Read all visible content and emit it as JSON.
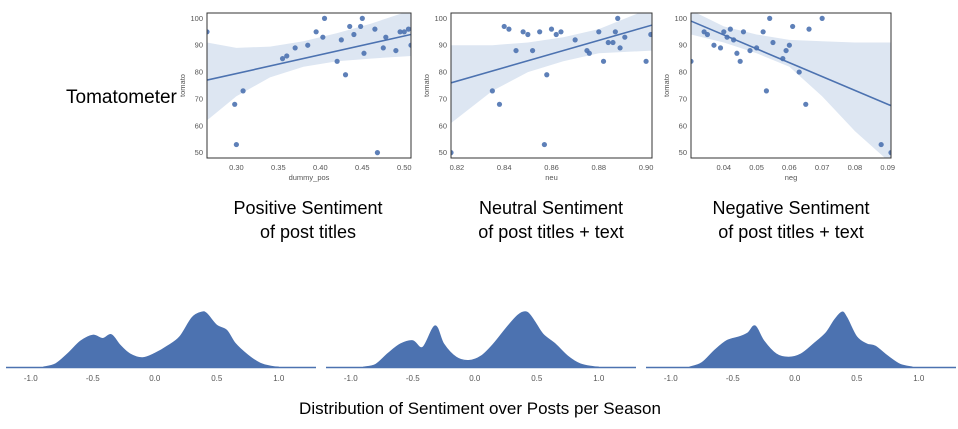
{
  "figure": {
    "left_label": "Tomatometer",
    "bottom_title": "Distribution of Sentiment over Posts per Season",
    "captions": [
      [
        "Positive Sentiment",
        "of post titles"
      ],
      [
        "Neutral Sentiment",
        "of post titles + text"
      ],
      [
        "Negative Sentiment",
        "of post titles + text"
      ]
    ]
  },
  "colors": {
    "point": "#4c72b0",
    "line": "#4c72b0",
    "band": "#dde6f2",
    "density_fill": "#4c72b0",
    "axis_text": "#555555",
    "frame": "#333333"
  },
  "chart_data": [
    {
      "type": "scatter",
      "xlabel": "dummy_pos",
      "ylabel": "tomato",
      "xlim": [
        0.265,
        0.508
      ],
      "ylim": [
        48,
        102
      ],
      "xticks": [
        0.3,
        0.35,
        0.4,
        0.45,
        0.5
      ],
      "xtick_labels": [
        "0.30",
        "0.35",
        "0.40",
        "0.45",
        "0.50"
      ],
      "yticks": [
        50,
        60,
        70,
        80,
        90,
        100
      ],
      "yticks_labels": [
        "50",
        "60",
        "70",
        "80",
        "90",
        "100"
      ],
      "grid": false,
      "points": [
        [
          0.265,
          95
        ],
        [
          0.298,
          68
        ],
        [
          0.3,
          53
        ],
        [
          0.308,
          73
        ],
        [
          0.355,
          85
        ],
        [
          0.36,
          86
        ],
        [
          0.37,
          89
        ],
        [
          0.385,
          90
        ],
        [
          0.395,
          95
        ],
        [
          0.403,
          93
        ],
        [
          0.405,
          100
        ],
        [
          0.42,
          84
        ],
        [
          0.425,
          92
        ],
        [
          0.43,
          79
        ],
        [
          0.435,
          97
        ],
        [
          0.44,
          94
        ],
        [
          0.448,
          97
        ],
        [
          0.45,
          100
        ],
        [
          0.452,
          87
        ],
        [
          0.465,
          96
        ],
        [
          0.468,
          50
        ],
        [
          0.475,
          89
        ],
        [
          0.478,
          93
        ],
        [
          0.49,
          88
        ],
        [
          0.495,
          95
        ],
        [
          0.5,
          95
        ],
        [
          0.505,
          96
        ],
        [
          0.508,
          90
        ]
      ],
      "regression": {
        "x": [
          0.265,
          0.508
        ],
        "y": [
          77,
          94
        ]
      },
      "band": {
        "x": [
          0.265,
          0.3,
          0.34,
          0.38,
          0.42,
          0.46,
          0.508
        ],
        "upper": [
          91,
          89,
          89.5,
          91.5,
          94.5,
          98,
          103
        ],
        "lower": [
          62,
          71,
          78,
          82,
          84,
          85,
          86
        ]
      }
    },
    {
      "type": "scatter",
      "xlabel": "neu",
      "ylabel": "tomato",
      "xlim": [
        0.8175,
        0.9025
      ],
      "ylim": [
        48,
        102
      ],
      "xticks": [
        0.82,
        0.84,
        0.86,
        0.88,
        0.9
      ],
      "xtick_labels": [
        "0.82",
        "0.84",
        "0.86",
        "0.88",
        "0.90"
      ],
      "yticks": [
        50,
        60,
        70,
        80,
        90,
        100
      ],
      "yticks_labels": [
        "50",
        "60",
        "70",
        "80",
        "90",
        "100"
      ],
      "grid": false,
      "points": [
        [
          0.8175,
          50
        ],
        [
          0.835,
          73
        ],
        [
          0.838,
          68
        ],
        [
          0.84,
          97
        ],
        [
          0.842,
          96
        ],
        [
          0.845,
          88
        ],
        [
          0.848,
          95
        ],
        [
          0.85,
          94
        ],
        [
          0.852,
          88
        ],
        [
          0.855,
          95
        ],
        [
          0.857,
          53
        ],
        [
          0.858,
          79
        ],
        [
          0.86,
          96
        ],
        [
          0.862,
          94
        ],
        [
          0.864,
          95
        ],
        [
          0.87,
          92
        ],
        [
          0.875,
          88
        ],
        [
          0.876,
          87
        ],
        [
          0.88,
          95
        ],
        [
          0.882,
          84
        ],
        [
          0.884,
          91
        ],
        [
          0.886,
          91
        ],
        [
          0.887,
          95
        ],
        [
          0.888,
          100
        ],
        [
          0.889,
          89
        ],
        [
          0.891,
          93
        ],
        [
          0.9,
          84
        ],
        [
          0.902,
          94
        ]
      ],
      "regression": {
        "x": [
          0.8175,
          0.9025
        ],
        "y": [
          76,
          97.5
        ]
      },
      "band": {
        "x": [
          0.8175,
          0.835,
          0.85,
          0.865,
          0.88,
          0.9025
        ],
        "upper": [
          90,
          90,
          91,
          93,
          96,
          104
        ],
        "lower": [
          61,
          73,
          80,
          84,
          87,
          88
        ]
      }
    },
    {
      "type": "scatter",
      "xlabel": "neg",
      "ylabel": "tomato",
      "xlim": [
        0.03,
        0.091
      ],
      "ylim": [
        48,
        102
      ],
      "xticks": [
        0.04,
        0.05,
        0.06,
        0.07,
        0.08,
        0.09
      ],
      "xtick_labels": [
        "0.04",
        "0.05",
        "0.06",
        "0.07",
        "0.08",
        "0.09"
      ],
      "yticks": [
        50,
        60,
        70,
        80,
        90,
        100
      ],
      "yticks_labels": [
        "50",
        "60",
        "70",
        "80",
        "90",
        "100"
      ],
      "grid": false,
      "points": [
        [
          0.03,
          84
        ],
        [
          0.034,
          95
        ],
        [
          0.035,
          94
        ],
        [
          0.037,
          90
        ],
        [
          0.039,
          89
        ],
        [
          0.04,
          95
        ],
        [
          0.041,
          93
        ],
        [
          0.042,
          96
        ],
        [
          0.043,
          92
        ],
        [
          0.044,
          87
        ],
        [
          0.045,
          84
        ],
        [
          0.046,
          95
        ],
        [
          0.048,
          88
        ],
        [
          0.05,
          89
        ],
        [
          0.052,
          95
        ],
        [
          0.053,
          73
        ],
        [
          0.054,
          100
        ],
        [
          0.055,
          91
        ],
        [
          0.058,
          85
        ],
        [
          0.059,
          88
        ],
        [
          0.06,
          90
        ],
        [
          0.061,
          97
        ],
        [
          0.063,
          80
        ],
        [
          0.065,
          68
        ],
        [
          0.066,
          96
        ],
        [
          0.07,
          100
        ],
        [
          0.088,
          53
        ],
        [
          0.091,
          50
        ]
      ],
      "regression": {
        "x": [
          0.03,
          0.091
        ],
        "y": [
          99,
          67.5
        ]
      },
      "band": {
        "x": [
          0.03,
          0.04,
          0.05,
          0.06,
          0.07,
          0.08,
          0.091
        ],
        "upper": [
          103,
          97,
          94,
          92,
          91.5,
          91,
          91
        ],
        "lower": [
          94,
          91,
          87,
          82,
          71,
          58,
          46
        ]
      }
    },
    {
      "type": "area",
      "xlim": [
        -1.2,
        1.3
      ],
      "xticks": [
        -1.0,
        -0.5,
        0.0,
        0.5,
        1.0
      ],
      "xtick_labels": [
        "-1.0",
        "-0.5",
        "0.0",
        "0.5",
        "1.0"
      ],
      "grid": false,
      "x": [
        -0.9,
        -0.8,
        -0.7,
        -0.6,
        -0.5,
        -0.42,
        -0.35,
        -0.28,
        -0.2,
        -0.1,
        0.0,
        0.1,
        0.2,
        0.3,
        0.38,
        0.42,
        0.5,
        0.58,
        0.65,
        0.75,
        0.85,
        0.95,
        1.0
      ],
      "y": [
        0.0,
        0.06,
        0.25,
        0.47,
        0.58,
        0.52,
        0.59,
        0.4,
        0.24,
        0.17,
        0.25,
        0.38,
        0.55,
        0.9,
        1.0,
        0.97,
        0.76,
        0.67,
        0.43,
        0.22,
        0.07,
        0.01,
        0.0
      ]
    },
    {
      "type": "area",
      "xlim": [
        -1.2,
        1.3
      ],
      "xticks": [
        -1.0,
        -0.5,
        0.0,
        0.5,
        1.0
      ],
      "xtick_labels": [
        "-1.0",
        "-0.5",
        "0.0",
        "0.5",
        "1.0"
      ],
      "grid": false,
      "x": [
        -0.9,
        -0.8,
        -0.7,
        -0.6,
        -0.5,
        -0.42,
        -0.32,
        -0.25,
        -0.15,
        -0.05,
        0.05,
        0.15,
        0.25,
        0.35,
        0.42,
        0.48,
        0.55,
        0.65,
        0.75,
        0.85,
        0.95,
        1.0
      ],
      "y": [
        0.0,
        0.05,
        0.25,
        0.42,
        0.48,
        0.36,
        0.75,
        0.42,
        0.18,
        0.12,
        0.2,
        0.42,
        0.7,
        0.95,
        1.0,
        0.84,
        0.6,
        0.42,
        0.2,
        0.06,
        0.01,
        0.0
      ]
    },
    {
      "type": "area",
      "xlim": [
        -1.2,
        1.3
      ],
      "xticks": [
        -1.0,
        -0.5,
        0.0,
        0.5,
        1.0
      ],
      "xtick_labels": [
        "-1.0",
        "-0.5",
        "0.0",
        "0.5",
        "1.0"
      ],
      "grid": false,
      "x": [
        -0.85,
        -0.75,
        -0.65,
        -0.55,
        -0.45,
        -0.38,
        -0.32,
        -0.25,
        -0.15,
        -0.05,
        0.05,
        0.15,
        0.25,
        0.32,
        0.38,
        0.42,
        0.5,
        0.58,
        0.65,
        0.75,
        0.85,
        0.95
      ],
      "y": [
        0.0,
        0.08,
        0.3,
        0.48,
        0.55,
        0.62,
        0.75,
        0.48,
        0.24,
        0.18,
        0.24,
        0.42,
        0.62,
        0.86,
        1.0,
        0.9,
        0.55,
        0.42,
        0.38,
        0.2,
        0.05,
        0.0
      ]
    }
  ]
}
